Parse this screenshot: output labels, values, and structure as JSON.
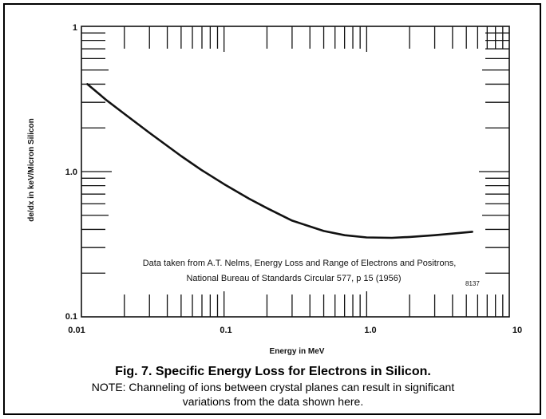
{
  "chart_data": {
    "type": "line",
    "xscale": "log",
    "yscale": "log",
    "xlim": [
      0.01,
      10
    ],
    "ylim": [
      0.1,
      10
    ],
    "xlabel": "Energy in MeV",
    "ylabel": "de/dx in keV/Micron Silicon",
    "x_tick_labels": [
      "0.01",
      "0.1",
      "1.0",
      "10"
    ],
    "y_tick_labels": [
      "0.1",
      "1.0",
      "1"
    ],
    "series": [
      {
        "x": [
          0.011,
          0.015,
          0.02,
          0.03,
          0.05,
          0.07,
          0.1,
          0.15,
          0.2,
          0.3,
          0.5,
          0.7,
          1.0,
          1.5,
          2.0,
          3.0,
          5.5
        ],
        "y": [
          4.0,
          3.1,
          2.5,
          1.85,
          1.28,
          1.02,
          0.82,
          0.65,
          0.56,
          0.46,
          0.39,
          0.365,
          0.352,
          0.35,
          0.355,
          0.365,
          0.385
        ]
      }
    ],
    "annotation": [
      "Data taken from A.T. Nelms, Energy Loss and Range of Electrons and Positrons,",
      "National Bureau of Standards Circular 577, p 15 (1956)"
    ],
    "code": "8137"
  },
  "caption": {
    "title": "Fig. 7.  Specific Energy Loss for Electrons in Silicon.",
    "note_line1": "NOTE: Channeling of ions between crystal planes can result in significant",
    "note_line2": "variations from the data shown here."
  },
  "colors": {
    "ink": "#111111",
    "background": "#ffffff"
  }
}
